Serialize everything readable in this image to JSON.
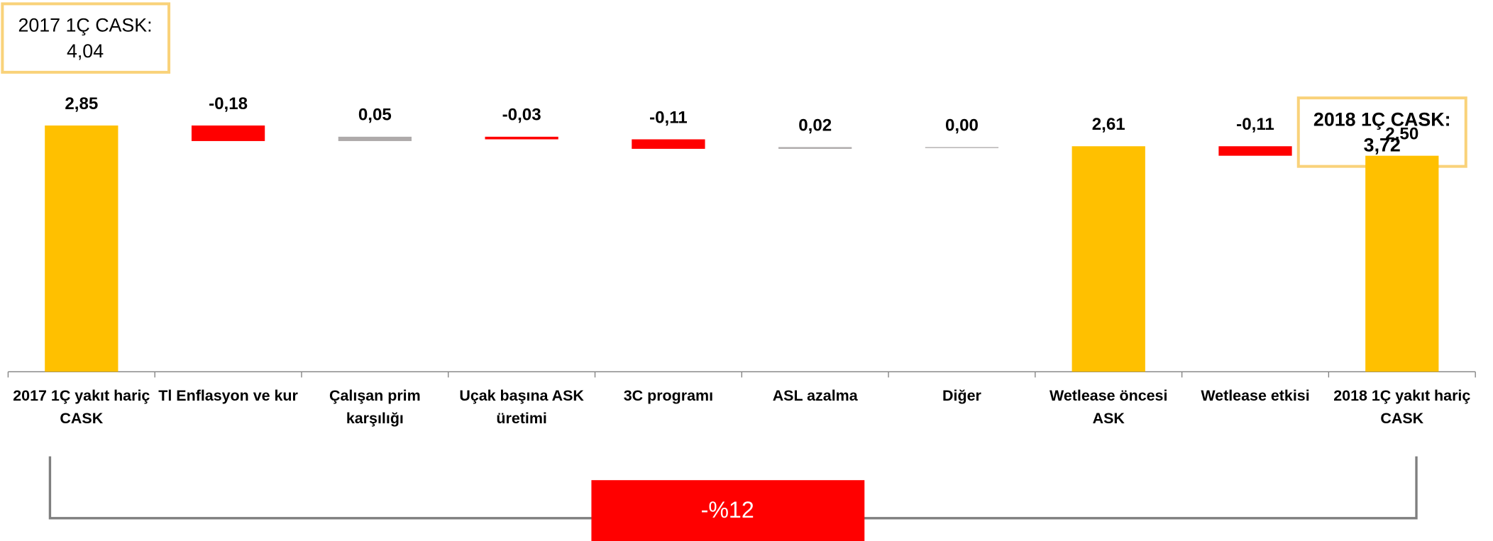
{
  "chart_data": {
    "type": "waterfall",
    "categories": [
      [
        "2017 1Ç yakıt hariç",
        "CASK"
      ],
      [
        "Tl Enflasyon ve kur"
      ],
      [
        "Çalışan prim",
        "karşılığı"
      ],
      [
        "Uçak başına ASK",
        "üretimi"
      ],
      [
        "3C programı"
      ],
      [
        "ASL azalma"
      ],
      [
        "Diğer"
      ],
      [
        "Wetlease öncesi",
        "ASK"
      ],
      [
        "Wetlease etkisi"
      ],
      [
        "2018 1Ç yakıt hariç",
        "CASK"
      ]
    ],
    "values": [
      2.85,
      -0.18,
      0.05,
      -0.03,
      -0.11,
      0.02,
      0.0,
      2.61,
      -0.11,
      2.5
    ],
    "value_labels": [
      "2,85",
      "-0,18",
      "0,05",
      "-0,03",
      "-0,11",
      "0,02",
      "0,00",
      "2,61",
      "-0,11",
      "2,50"
    ],
    "measure": [
      "absolute",
      "relative",
      "relative",
      "relative",
      "relative",
      "relative",
      "relative",
      "total",
      "relative",
      "total"
    ],
    "colors": [
      "#ffc000",
      "#ff0000",
      "#aeaaaa",
      "#ff0000",
      "#ff0000",
      "#aeaaaa",
      "#aeaaaa",
      "#ffc000",
      "#ff0000",
      "#ffc000"
    ],
    "annotations": [
      {
        "lines": [
          "2017 1Ç CASK:",
          "4,04"
        ]
      },
      {
        "lines": [
          "2018 1Ç CASK:",
          "3,72"
        ]
      },
      {
        "lines": [
          "-%12"
        ]
      }
    ]
  }
}
